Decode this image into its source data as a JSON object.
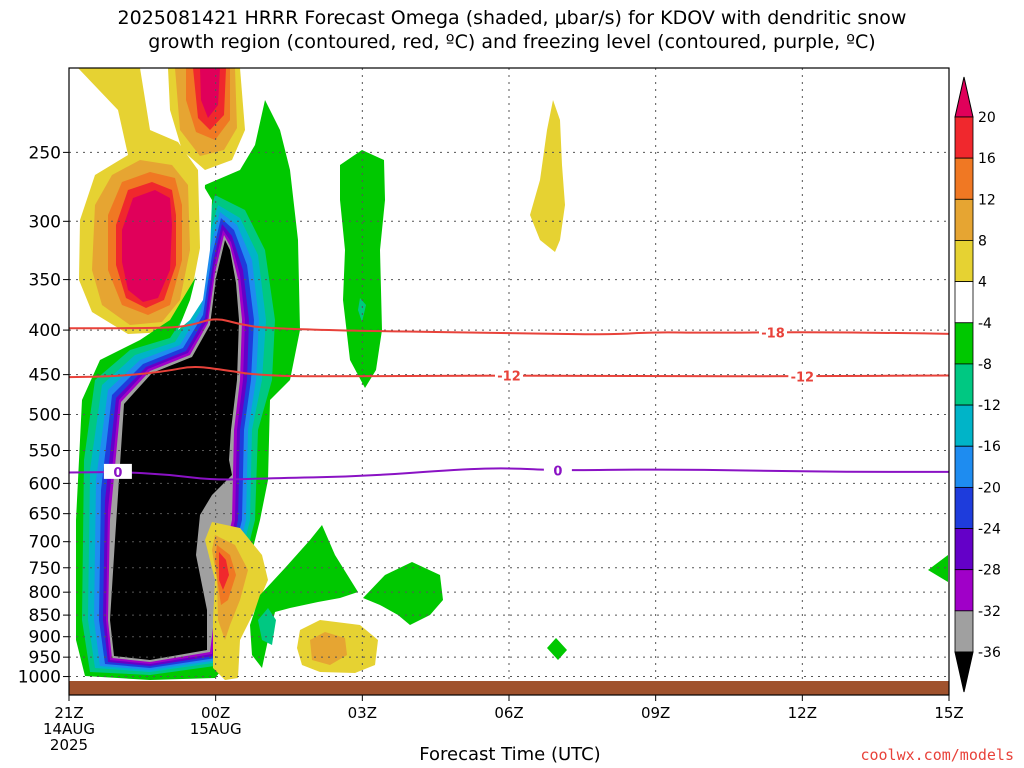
{
  "title_line1": "2025081421 HRRR Forecast Omega (shaded, μbar/s) for KDOV with dendritic snow",
  "title_line2": "growth region (contoured, red, ºC) and freezing level (contoured, purple, ºC)",
  "credit": "coolwx.com/models",
  "colors": {
    "line_red": "#e8423a",
    "line_purple": "#8a12c4",
    "ground": "#a0522d"
  },
  "chart_data": {
    "type": "heatmap",
    "title": "2025081421 HRRR Forecast Omega (shaded, μbar/s) for KDOV with dendritic snow growth region (contoured, red, ºC) and freezing level (contoured, purple, ºC)",
    "xlabel": "Forecast Time (UTC)",
    "ylabel": "",
    "x_range_hours": [
      0,
      18
    ],
    "y_range_hpa": [
      200,
      1050
    ],
    "y_scale": "log-pressure",
    "grid": true,
    "x_ticks": [
      {
        "hour": 0,
        "label": "21Z",
        "sub1": "14AUG",
        "sub2": "2025"
      },
      {
        "hour": 3,
        "label": "00Z",
        "sub1": "15AUG",
        "sub2": ""
      },
      {
        "hour": 6,
        "label": "03Z",
        "sub1": "",
        "sub2": ""
      },
      {
        "hour": 9,
        "label": "06Z",
        "sub1": "",
        "sub2": ""
      },
      {
        "hour": 12,
        "label": "09Z",
        "sub1": "",
        "sub2": ""
      },
      {
        "hour": 15,
        "label": "12Z",
        "sub1": "",
        "sub2": ""
      },
      {
        "hour": 18,
        "label": "15Z",
        "sub1": "",
        "sub2": ""
      }
    ],
    "y_ticks": [
      {
        "p": 250,
        "label": "250"
      },
      {
        "p": 300,
        "label": "300"
      },
      {
        "p": 350,
        "label": "350"
      },
      {
        "p": 400,
        "label": "400"
      },
      {
        "p": 450,
        "label": "450"
      },
      {
        "p": 500,
        "label": "500"
      },
      {
        "p": 550,
        "label": "550"
      },
      {
        "p": 600,
        "label": "600"
      },
      {
        "p": 650,
        "label": "650"
      },
      {
        "p": 700,
        "label": "700"
      },
      {
        "p": 750,
        "label": "750"
      },
      {
        "p": 800,
        "label": "800"
      },
      {
        "p": 850,
        "label": "850"
      },
      {
        "p": 900,
        "label": "900"
      },
      {
        "p": 950,
        "label": "950"
      },
      {
        "p": 1000,
        "label": "1000"
      }
    ],
    "colorbar": {
      "labels": [
        "20",
        "16",
        "12",
        "8",
        "4",
        "-4",
        "-8",
        "-12",
        "-16",
        "-20",
        "-24",
        "-28",
        "-32",
        "-36"
      ],
      "colors": [
        "#e0005a",
        "#f0282d",
        "#f07823",
        "#e6a532",
        "#e6d232",
        "#ffffff",
        "#00c800",
        "#00c882",
        "#00b4c8",
        "#1e8cf0",
        "#1e3cdc",
        "#6400c8",
        "#a000c8",
        "#a0a0a0",
        "#000000"
      ]
    },
    "contours": [
      {
        "name": "-18",
        "color": "#e8423a",
        "points": [
          [
            0,
            398
          ],
          [
            2,
            398
          ],
          [
            2.5,
            395
          ],
          [
            3,
            387
          ],
          [
            3.5,
            394
          ],
          [
            4,
            398
          ],
          [
            6,
            401
          ],
          [
            9,
            403
          ],
          [
            11,
            405
          ],
          [
            12,
            402
          ],
          [
            13,
            403
          ],
          [
            15,
            402
          ],
          [
            17,
            403
          ],
          [
            18,
            404
          ]
        ],
        "labels": [
          {
            "hour": 14.4,
            "text": "-18"
          }
        ]
      },
      {
        "name": "-12",
        "color": "#e8423a",
        "points": [
          [
            0,
            453
          ],
          [
            1,
            452
          ],
          [
            2,
            446
          ],
          [
            2.5,
            440
          ],
          [
            3,
            443
          ],
          [
            4,
            452
          ],
          [
            6,
            452
          ],
          [
            9,
            451
          ],
          [
            12,
            452
          ],
          [
            15,
            452
          ],
          [
            18,
            451
          ]
        ],
        "labels": [
          {
            "hour": 9,
            "text": "-12"
          },
          {
            "hour": 15,
            "text": "-12"
          }
        ]
      },
      {
        "name": "0",
        "color": "#8a12c4",
        "points": [
          [
            0,
            583
          ],
          [
            1,
            582
          ],
          [
            2,
            586
          ],
          [
            3,
            595
          ],
          [
            4,
            592
          ],
          [
            6,
            589
          ],
          [
            8,
            578
          ],
          [
            9,
            576
          ],
          [
            10,
            580
          ],
          [
            12,
            578
          ],
          [
            14,
            580
          ],
          [
            16,
            582
          ],
          [
            18,
            582
          ]
        ],
        "labels": [
          {
            "hour": 1,
            "text": "0"
          },
          {
            "hour": 10,
            "text": "0"
          }
        ]
      }
    ]
  }
}
